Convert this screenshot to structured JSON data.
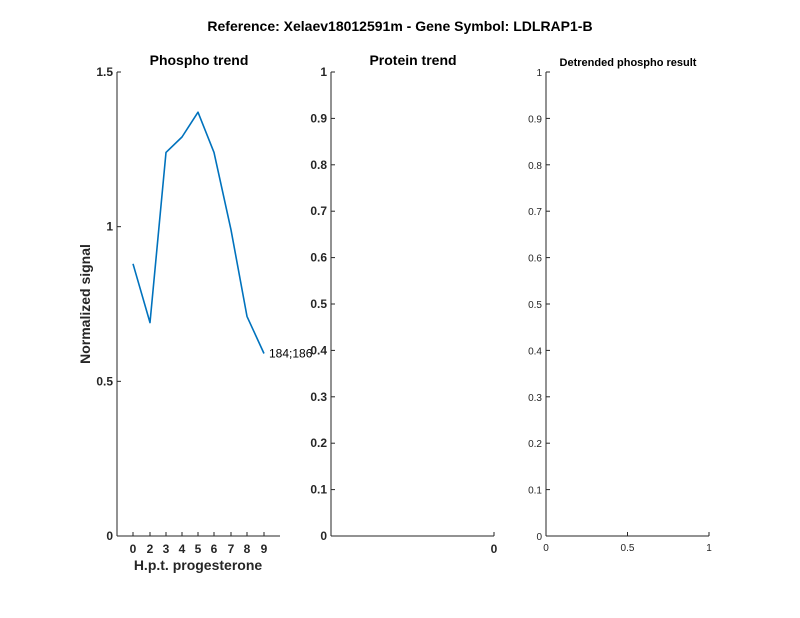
{
  "suptitle": "Reference:  Xelaev18012591m - Gene Symbol:  LDLRAP1-B",
  "chart_data": [
    {
      "type": "line",
      "title": "Phospho trend",
      "xlabel": "H.p.t. progesterone",
      "ylabel": "Normalized signal",
      "x": [
        0,
        2,
        3,
        4,
        5,
        6,
        7,
        8,
        9
      ],
      "series": [
        {
          "values": [
            0.88,
            0.69,
            1.24,
            1.29,
            1.37,
            1.24,
            0.99,
            0.71,
            0.59
          ],
          "color": "#0072bd"
        }
      ],
      "x_ticks": [
        "0",
        "2",
        "3",
        "4",
        "5",
        "6",
        "7",
        "8",
        "9"
      ],
      "y_ticks": [
        "0",
        "0.5",
        "1",
        "1.5"
      ],
      "ylim": [
        0,
        1.5
      ],
      "annotation": "184;186",
      "grid": false
    },
    {
      "type": "line",
      "title": "Protein trend",
      "xlabel": "",
      "ylabel": "",
      "series": [],
      "x_ticks": [
        "0"
      ],
      "y_ticks": [
        "0",
        "0.1",
        "0.2",
        "0.3",
        "0.4",
        "0.5",
        "0.6",
        "0.7",
        "0.8",
        "0.9",
        "1"
      ],
      "ylim": [
        0,
        1
      ],
      "grid": false
    },
    {
      "type": "line",
      "title": "Detrended phospho result",
      "xlabel": "",
      "ylabel": "",
      "series": [],
      "x_ticks": [
        "0",
        "0.5",
        "1"
      ],
      "xlim": [
        0,
        1
      ],
      "y_ticks": [
        "0",
        "0.1",
        "0.2",
        "0.3",
        "0.4",
        "0.5",
        "0.6",
        "0.7",
        "0.8",
        "0.9",
        "1"
      ],
      "ylim": [
        0,
        1
      ],
      "grid": false
    }
  ]
}
